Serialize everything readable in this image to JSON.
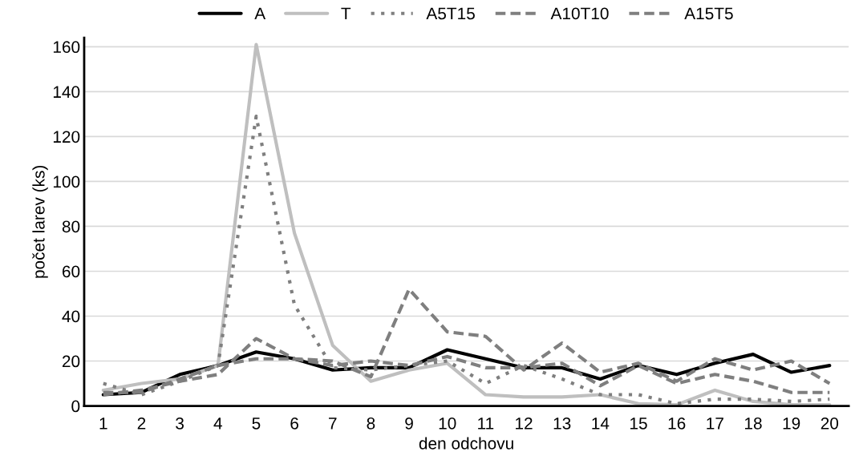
{
  "chart_data": {
    "type": "line",
    "xlabel": "den odchovu",
    "ylabel": "počet larev (ks)",
    "categories": [
      "1",
      "2",
      "3",
      "4",
      "5",
      "6",
      "7",
      "8",
      "9",
      "10",
      "11",
      "12",
      "13",
      "14",
      "15",
      "16",
      "17",
      "18",
      "19",
      "20"
    ],
    "series": [
      {
        "name": "A",
        "color": "#000000",
        "line_style": "solid",
        "values": [
          5,
          6,
          14,
          18,
          24,
          21,
          16,
          17,
          17,
          25,
          21,
          17,
          17,
          12,
          18,
          14,
          19,
          23,
          15,
          18
        ]
      },
      {
        "name": "T",
        "color": "#bfbfbf",
        "line_style": "solid",
        "values": [
          7,
          10,
          12,
          18,
          161,
          77,
          27,
          11,
          16,
          19,
          5,
          4,
          4,
          5,
          1,
          0.5,
          7,
          2,
          0.5,
          0.5
        ]
      },
      {
        "name": "A5T15",
        "color": "#7f7f7f",
        "line_style": "dotted",
        "values": [
          10,
          5,
          11,
          18,
          129,
          45,
          17,
          16,
          18,
          20,
          10,
          18,
          12,
          5,
          5,
          1,
          3,
          3,
          2,
          3
        ]
      },
      {
        "name": "A10T10",
        "color": "#7f7f7f",
        "line_style": "dashed",
        "values": [
          6,
          6,
          12,
          18,
          21,
          21,
          18,
          20,
          18,
          22,
          17,
          17,
          19,
          9,
          18,
          10,
          14,
          11,
          6,
          6
        ]
      },
      {
        "name": "A15T5",
        "color": "#7f7f7f",
        "line_style": "dashed",
        "values": [
          5,
          7,
          11,
          14,
          30,
          21,
          20,
          13,
          52,
          33,
          31,
          16,
          28,
          15,
          19,
          11,
          21,
          16,
          20,
          10
        ]
      }
    ],
    "ylim": [
      0,
      164
    ],
    "yticks": [
      0,
      20,
      40,
      60,
      80,
      100,
      120,
      140,
      160
    ],
    "grid": "y",
    "legend": "top",
    "marker": "none"
  }
}
